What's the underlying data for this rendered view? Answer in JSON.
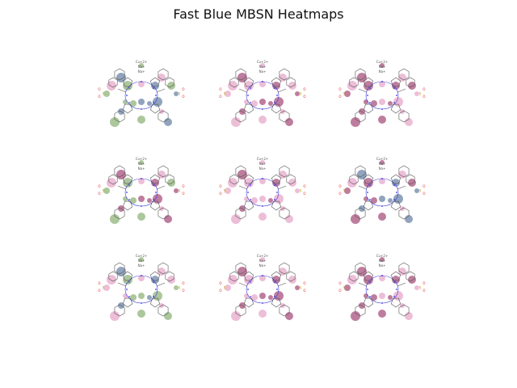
{
  "title": "Fast Blue MBSN Heatmaps",
  "colors": {
    "green": "#6a9a4a",
    "blue": "#3a5a88",
    "magenta": "#8a1450",
    "pink": "#e08ab8",
    "yellow": "#d8c040",
    "bond": "#555555",
    "nitrogen": "#3a3ae0",
    "oxygen": "#e03030"
  },
  "ion_labels": [
    "Cu+2+",
    "Na+",
    "Na+"
  ],
  "atom_labels": {
    "oxygen": "O",
    "sulfur": "S"
  },
  "panels": [
    {
      "name": "panel-r1-c1",
      "scheme": "green-blue"
    },
    {
      "name": "panel-r1-c2",
      "scheme": "pink-magenta"
    },
    {
      "name": "panel-r1-c3",
      "scheme": "dense-magenta"
    },
    {
      "name": "panel-r2-c1",
      "scheme": "green-magenta"
    },
    {
      "name": "panel-r2-c2",
      "scheme": "sparse-magenta"
    },
    {
      "name": "panel-r2-c3",
      "scheme": "magenta-blue"
    },
    {
      "name": "panel-r3-c1",
      "scheme": "green-blue-pink"
    },
    {
      "name": "panel-r3-c2",
      "scheme": "pink-magenta"
    },
    {
      "name": "panel-r3-c3",
      "scheme": "dense-magenta"
    }
  ]
}
